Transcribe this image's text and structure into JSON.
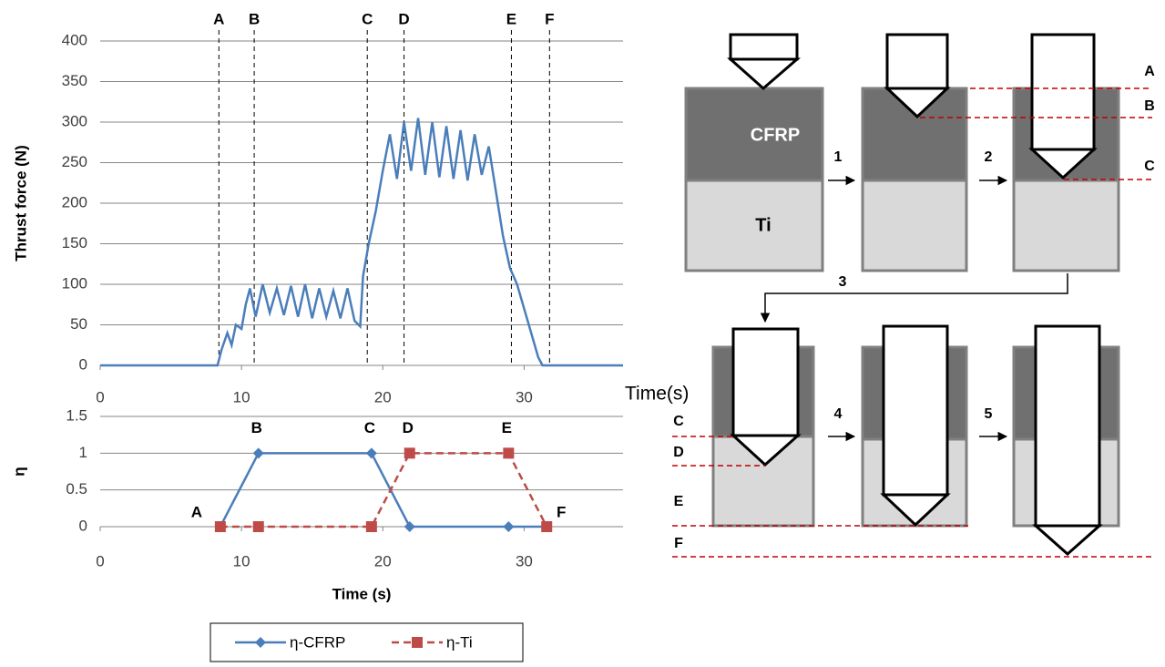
{
  "chart_data": [
    {
      "type": "line",
      "xlabel": "Time(s)",
      "ylabel": "Thrust force (N)",
      "color": "#4a7ebb",
      "grid": true,
      "xlim": [
        0,
        37
      ],
      "ylim": [
        0,
        400
      ],
      "xticks": [
        0,
        10,
        20,
        30
      ],
      "yticks": [
        0,
        50,
        100,
        150,
        200,
        250,
        300,
        350,
        400
      ],
      "x": [
        0,
        8.3,
        8.6,
        9,
        9.3,
        9.6,
        10,
        10.3,
        10.6,
        11,
        11.5,
        12,
        12.5,
        13,
        13.5,
        14,
        14.5,
        15,
        15.5,
        16,
        16.5,
        17,
        17.5,
        18,
        18.4,
        18.6,
        19,
        19.5,
        20,
        20.5,
        21,
        21.5,
        22,
        22.5,
        23,
        23.5,
        24,
        24.5,
        25,
        25.5,
        26,
        26.5,
        27,
        27.5,
        28,
        28.5,
        29,
        29.5,
        30,
        30.5,
        31,
        31.3,
        37
      ],
      "values": [
        0,
        0,
        20,
        40,
        25,
        50,
        45,
        75,
        95,
        60,
        100,
        65,
        95,
        62,
        98,
        60,
        100,
        58,
        95,
        60,
        92,
        58,
        95,
        55,
        48,
        110,
        150,
        190,
        240,
        285,
        230,
        300,
        240,
        305,
        235,
        300,
        232,
        295,
        230,
        290,
        228,
        285,
        235,
        270,
        215,
        160,
        120,
        100,
        70,
        40,
        10,
        0,
        0
      ],
      "markers": [
        {
          "label": "A",
          "x": 8.4
        },
        {
          "label": "B",
          "x": 10.9
        },
        {
          "label": "C",
          "x": 18.9
        },
        {
          "label": "D",
          "x": 21.5
        },
        {
          "label": "E",
          "x": 29.1
        },
        {
          "label": "F",
          "x": 31.8
        }
      ]
    },
    {
      "type": "line",
      "xlabel": "Time (s)",
      "ylabel": "η",
      "grid": true,
      "legend": "bottom",
      "xlim": [
        0,
        37
      ],
      "ylim": [
        0,
        1.5
      ],
      "xticks": [
        0,
        10,
        20,
        30
      ],
      "yticks": [
        0,
        0.5,
        1,
        1.5
      ],
      "x": [
        8.5,
        11.2,
        19.2,
        21.9,
        28.9,
        31.6
      ],
      "point_labels": [
        "A",
        "B",
        "C",
        "D",
        "E",
        "F"
      ],
      "series": [
        {
          "name": "η-CFRP",
          "color": "#4a7ebb",
          "marker": "diamond",
          "dash": false,
          "values": [
            0,
            1,
            1,
            0,
            0,
            0
          ]
        },
        {
          "name": "η-Ti",
          "color": "#be4b48",
          "marker": "square",
          "dash": true,
          "values": [
            0,
            0,
            0,
            1,
            1,
            0
          ]
        }
      ]
    }
  ],
  "diagram": {
    "materials": [
      "CFRP",
      "Ti"
    ],
    "steps": [
      "1",
      "2",
      "3",
      "4",
      "5"
    ],
    "top_levels": [
      "A",
      "B",
      "C"
    ],
    "bottom_levels": [
      "C",
      "D",
      "E",
      "F"
    ]
  }
}
